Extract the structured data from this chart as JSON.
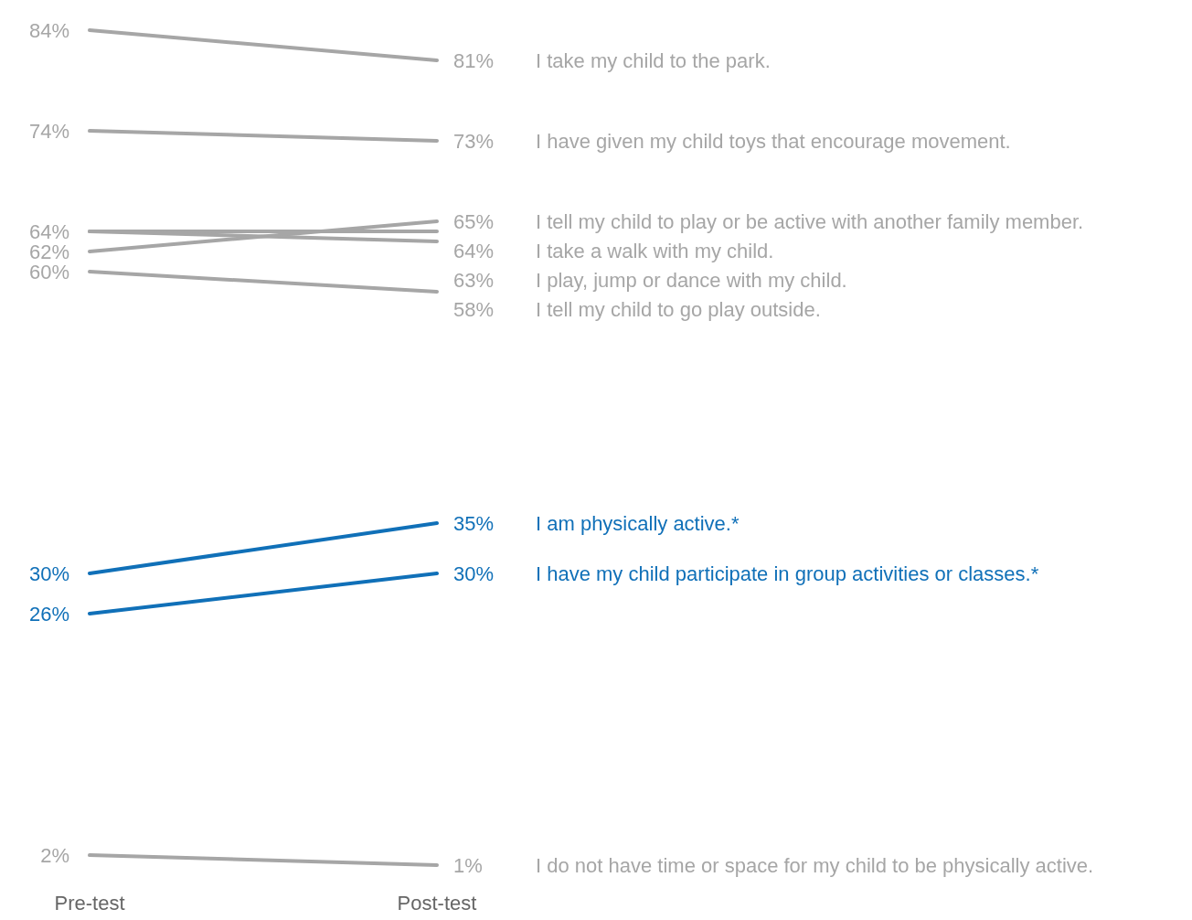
{
  "chart_data": {
    "type": "line",
    "categories": [
      "Pre-test",
      "Post-test"
    ],
    "legend": false,
    "grid": false,
    "marker": "none",
    "line_style": "solid",
    "series": [
      {
        "name": "I take my child to the park.",
        "color": "#a6a6a6",
        "values": [
          84,
          81
        ],
        "value_labels": [
          "84%",
          "81%"
        ]
      },
      {
        "name": "I have given my child toys that encourage movement.",
        "color": "#a6a6a6",
        "values": [
          74,
          73
        ],
        "value_labels": [
          "74%",
          "73%"
        ]
      },
      {
        "name": "I tell my child to play or be active with another family member.",
        "color": "#a6a6a6",
        "values": [
          62,
          65
        ],
        "value_labels": [
          "62%",
          "65%"
        ]
      },
      {
        "name": "I take a walk with my child.",
        "color": "#a6a6a6",
        "values": [
          64,
          64
        ],
        "value_labels": [
          "64%",
          "64%"
        ]
      },
      {
        "name": "I play, jump or dance with my child.",
        "color": "#a6a6a6",
        "values": [
          64,
          63
        ],
        "value_labels": [
          null,
          "63%"
        ]
      },
      {
        "name": "I tell my child to go play outside.",
        "color": "#a6a6a6",
        "values": [
          60,
          58
        ],
        "value_labels": [
          "60%",
          "58%"
        ]
      },
      {
        "name": "I am physically active.*",
        "color": "#1070b8",
        "values": [
          30,
          35
        ],
        "value_labels": [
          "30%",
          "35%"
        ]
      },
      {
        "name": "I have my child participate in group activities or classes.*",
        "color": "#1070b8",
        "values": [
          26,
          30
        ],
        "value_labels": [
          "26%",
          "30%"
        ]
      },
      {
        "name": "I do not have time or space for my child to be physically active.",
        "color": "#a6a6a6",
        "values": [
          2,
          1
        ],
        "value_labels": [
          "2%",
          "1%"
        ]
      }
    ]
  }
}
